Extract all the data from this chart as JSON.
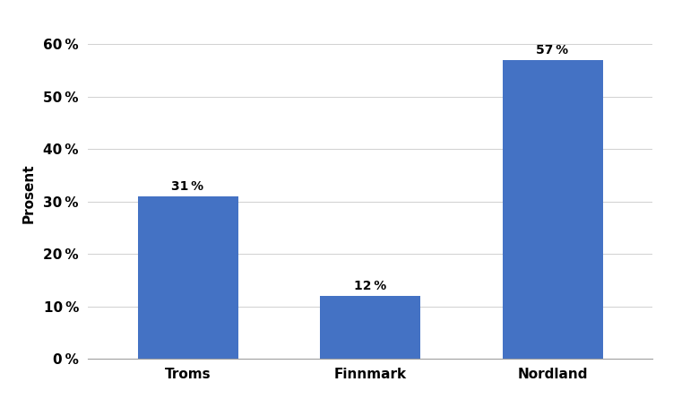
{
  "categories": [
    "Troms",
    "Finnmark",
    "Nordland"
  ],
  "values": [
    31,
    12,
    57
  ],
  "bar_color": "#4472C4",
  "ylabel": "Prosent",
  "ylim": [
    0,
    63
  ],
  "yticks": [
    0,
    10,
    20,
    30,
    40,
    50,
    60
  ],
  "bar_labels": [
    "31 %",
    "12 %",
    "57 %"
  ],
  "label_fontsize": 10,
  "axis_label_fontsize": 11,
  "tick_fontsize": 11,
  "bar_width": 0.55,
  "background_color": "#ffffff",
  "grid_color": "#d0d0d0",
  "spine_color": "#a0a0a0"
}
